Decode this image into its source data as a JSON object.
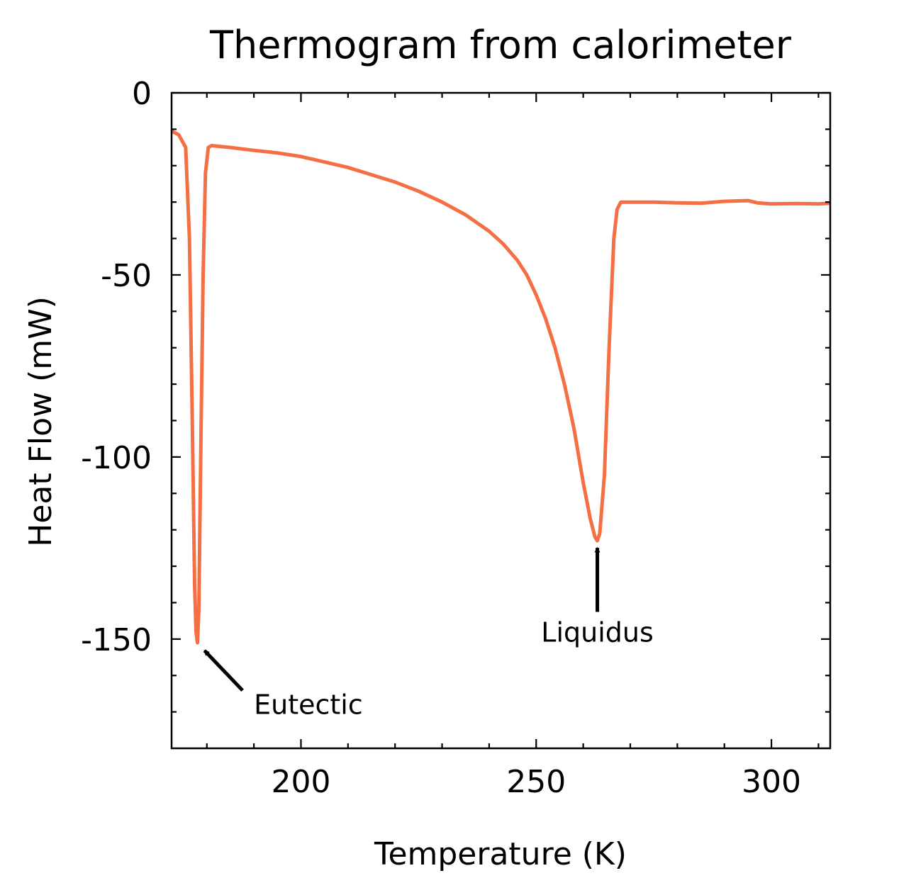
{
  "chart_data": {
    "type": "line",
    "title": "Thermogram from calorimeter",
    "xlabel": "Temperature (K)",
    "ylabel": "Heat Flow (mW)",
    "xlim": [
      172.5,
      312.5
    ],
    "ylim": [
      -180,
      0
    ],
    "x_ticks": [
      200,
      250,
      300
    ],
    "x_tick_labels": [
      "200",
      "250",
      "300"
    ],
    "y_ticks": [
      0,
      -50,
      -100,
      -150
    ],
    "y_tick_labels": [
      "0",
      "-50",
      "-100",
      "-150"
    ],
    "grid": false,
    "legend": "none",
    "series": [
      {
        "color": "#f46f43",
        "x": [
          172.5,
          174,
          175.5,
          176.3,
          176.9,
          177.4,
          177.7,
          178.0,
          178.3,
          178.7,
          179.2,
          179.7,
          180.3,
          181,
          185,
          190,
          195,
          200,
          205,
          210,
          215,
          220,
          225,
          230,
          235,
          240,
          243,
          246,
          248,
          250,
          252,
          254,
          256,
          258,
          260,
          261.5,
          262.5,
          263,
          263.5,
          264.5,
          265.5,
          266.5,
          267.2,
          268,
          270,
          275,
          280,
          285,
          290,
          295,
          297,
          300,
          305,
          310,
          312.5
        ],
        "y": [
          -10.5,
          -11.5,
          -15,
          -40,
          -90,
          -135,
          -148,
          -151,
          -142,
          -100,
          -50,
          -22,
          -15,
          -14.5,
          -15,
          -15.8,
          -16.5,
          -17.5,
          -19,
          -20.5,
          -22.5,
          -24.5,
          -27,
          -30,
          -33.5,
          -38,
          -41.5,
          -46,
          -50,
          -55.5,
          -62,
          -70,
          -80,
          -92,
          -107,
          -117,
          -122,
          -123,
          -121,
          -105,
          -70,
          -40,
          -32,
          -30,
          -30,
          -30,
          -30.2,
          -30.3,
          -29.8,
          -29.6,
          -30.2,
          -30.5,
          -30.4,
          -30.5,
          -30.3
        ]
      }
    ],
    "annotations": [
      {
        "text": "Eutectic",
        "point": [
          178.3,
          -152
        ],
        "text_at": [
          190,
          -168
        ]
      },
      {
        "text": "Liquidus",
        "point": [
          263,
          -123
        ],
        "text_at": [
          263,
          -148
        ]
      }
    ]
  }
}
